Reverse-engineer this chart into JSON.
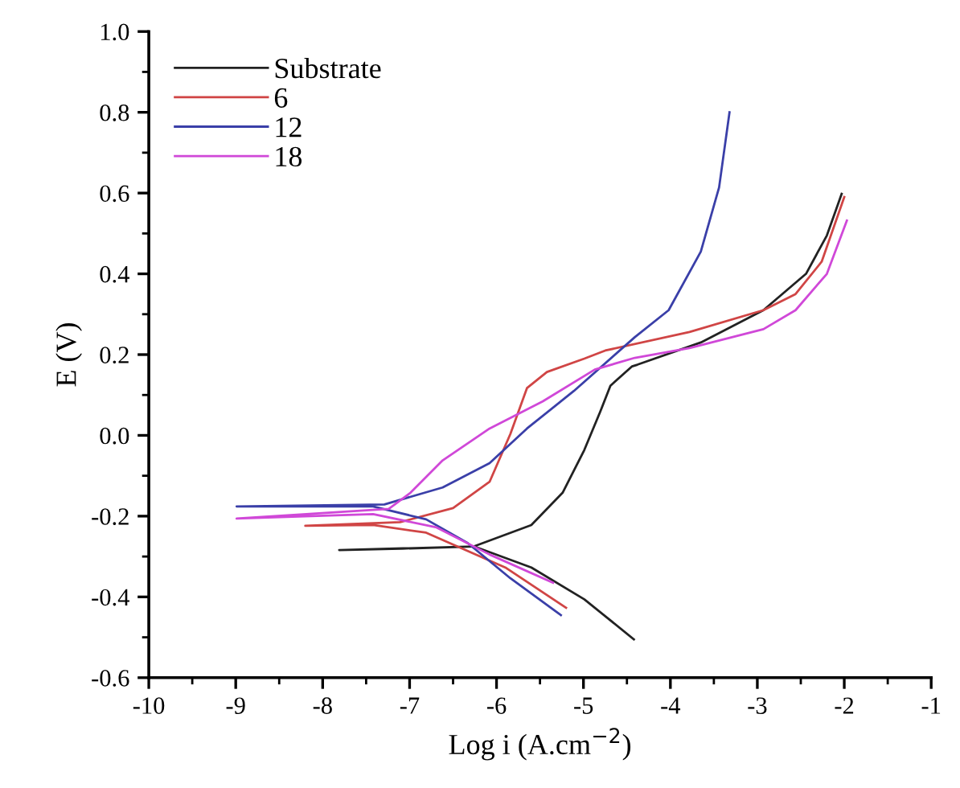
{
  "chart_data": {
    "type": "line",
    "xlabel": "Log i (A.cm$^{−2}$)",
    "ylabel": "E (V)",
    "xlim": [
      -10,
      -1
    ],
    "xticks": [
      -10,
      -9,
      -8,
      -7,
      -6,
      -5,
      -4,
      -3,
      -2,
      -1
    ],
    "ylim": [
      -0.6,
      1.0
    ],
    "yticks": [
      {
        "value": -0.6,
        "label": "-0.6"
      },
      {
        "value": -0.4,
        "label": "-0.4"
      },
      {
        "value": -0.2,
        "label": "-0.2"
      },
      {
        "value": 0.0,
        "label": "0.0"
      },
      {
        "value": 0.2,
        "label": "0.2"
      },
      {
        "value": 0.4,
        "label": "0.4"
      },
      {
        "value": 0.6,
        "label": "0.6"
      },
      {
        "value": 0.8,
        "label": "0.8"
      },
      {
        "value": 1.0,
        "label": "1.0"
      }
    ],
    "grid": false,
    "legend": "top left",
    "marker": "none",
    "line_style": "solid",
    "series": [
      {
        "name": "Substrate",
        "color": "#222222",
        "x": [
          -4.42,
          -4.99,
          -5.6,
          -6.26,
          -7.0,
          -7.81,
          -6.26,
          -5.6,
          -5.24,
          -4.99,
          -4.81,
          -4.69,
          -4.44,
          -4.38,
          -3.65,
          -2.93,
          -2.44,
          -2.2,
          -2.03
        ],
        "values": [
          -0.505,
          -0.406,
          -0.327,
          -0.275,
          -0.28,
          -0.284,
          -0.275,
          -0.222,
          -0.142,
          -0.036,
          0.057,
          0.123,
          0.171,
          0.175,
          0.23,
          0.31,
          0.4,
          0.495,
          0.598
        ]
      },
      {
        "name": "6",
        "color": "#d04545",
        "x": [
          -5.2,
          -5.9,
          -6.81,
          -7.42,
          -8.2,
          -7.11,
          -6.5,
          -6.08,
          -5.84,
          -5.65,
          -5.42,
          -4.99,
          -4.75,
          -3.78,
          -2.93,
          -2.56,
          -2.26,
          -2.0
        ],
        "values": [
          -0.427,
          -0.327,
          -0.241,
          -0.222,
          -0.224,
          -0.215,
          -0.18,
          -0.115,
          0.004,
          0.117,
          0.157,
          0.19,
          0.21,
          0.256,
          0.31,
          0.35,
          0.43,
          0.59
        ]
      },
      {
        "name": "12",
        "color": "#3a3fa8",
        "x": [
          -5.26,
          -5.84,
          -6.33,
          -6.81,
          -7.42,
          -8.99,
          -7.29,
          -6.62,
          -6.08,
          -5.65,
          -5.11,
          -4.41,
          -4.02,
          -3.65,
          -3.44,
          -3.32
        ],
        "values": [
          -0.445,
          -0.354,
          -0.267,
          -0.208,
          -0.176,
          -0.176,
          -0.171,
          -0.129,
          -0.069,
          0.017,
          0.11,
          0.243,
          0.31,
          0.455,
          0.614,
          0.8
        ]
      },
      {
        "name": "18",
        "color": "#d048d8",
        "x": [
          -5.35,
          -6.08,
          -6.69,
          -7.42,
          -8.99,
          -7.24,
          -6.99,
          -6.62,
          -6.08,
          -5.47,
          -4.87,
          -4.41,
          -3.78,
          -2.93,
          -2.56,
          -2.2,
          -1.97
        ],
        "values": [
          -0.365,
          -0.295,
          -0.228,
          -0.195,
          -0.206,
          -0.182,
          -0.142,
          -0.062,
          0.017,
          0.084,
          0.163,
          0.192,
          0.216,
          0.263,
          0.31,
          0.4,
          0.532
        ]
      }
    ]
  }
}
